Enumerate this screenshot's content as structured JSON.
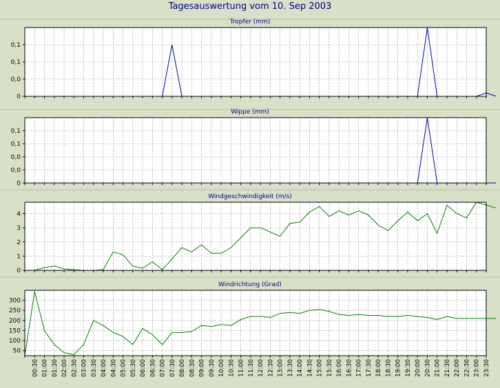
{
  "title": "Tagesauswertung vom 10. Sep 2003",
  "colors": {
    "background": "#d8e0c8",
    "plot_background": "#ffffff",
    "title_text": "#00008b",
    "panel_title_text": "#00008b",
    "axis_text": "#000000",
    "grid": "#8c8c8c",
    "blue_series": "#0000c8",
    "green_series": "#008000"
  },
  "time_labels": [
    "00:30",
    "01:00",
    "01:30",
    "02:00",
    "02:30",
    "03:00",
    "03:30",
    "04:00",
    "04:30",
    "05:00",
    "05:30",
    "06:00",
    "06:30",
    "07:00",
    "07:30",
    "08:00",
    "08:30",
    "09:00",
    "09:30",
    "10:00",
    "10:30",
    "11:00",
    "11:30",
    "12:00",
    "12:30",
    "13:00",
    "13:30",
    "14:00",
    "14:30",
    "15:00",
    "15:30",
    "16:00",
    "16:30",
    "17:00",
    "17:30",
    "18:00",
    "18:30",
    "19:00",
    "19:30",
    "20:00",
    "20:30",
    "21:00",
    "21:30",
    "22:00",
    "22:30",
    "23:00",
    "23:30"
  ],
  "chart_data": [
    {
      "type": "line",
      "title": "Tropfer (mm)",
      "y_tick_labels": [
        "0,1",
        "0,1",
        "0,0",
        "0"
      ],
      "ylim": [
        0,
        0.2
      ],
      "x_range": [
        0,
        47
      ],
      "grid": true,
      "color": "blue",
      "x": [
        0,
        14,
        15,
        16,
        40,
        41,
        42,
        46,
        47,
        48
      ],
      "y": [
        0,
        0,
        0.15,
        0,
        0,
        0.2,
        0,
        0,
        0.01,
        0
      ]
    },
    {
      "type": "line",
      "title": "Wippe (mm)",
      "y_tick_labels": [
        "0,1",
        "0,1",
        "0,0",
        "0,0",
        "0"
      ],
      "ylim": [
        0,
        0.2
      ],
      "x_range": [
        0,
        47
      ],
      "grid": true,
      "color": "blue",
      "x": [
        0,
        40,
        41,
        42,
        48
      ],
      "y": [
        0,
        0,
        0.2,
        0,
        0
      ]
    },
    {
      "type": "line",
      "title": "Windgeschwindigkeit (m/s)",
      "y_tick_labels": [
        "4",
        "3",
        "2",
        "1",
        "0"
      ],
      "ylim": [
        0,
        4.8
      ],
      "x_range": [
        0,
        47
      ],
      "grid": true,
      "color": "green",
      "x": [
        0,
        1,
        2,
        3,
        4,
        5,
        6,
        7,
        8,
        9,
        10,
        11,
        12,
        13,
        14,
        15,
        16,
        17,
        18,
        19,
        20,
        21,
        22,
        23,
        24,
        25,
        26,
        27,
        28,
        29,
        30,
        31,
        32,
        33,
        34,
        35,
        36,
        37,
        38,
        39,
        40,
        41,
        42,
        43,
        44,
        45,
        46,
        47,
        48
      ],
      "y": [
        0,
        0,
        0.2,
        0.3,
        0.1,
        0.05,
        0,
        0,
        0.05,
        1.3,
        1.1,
        0.3,
        0.15,
        0.6,
        0.05,
        0.8,
        1.6,
        1.3,
        1.8,
        1.2,
        1.2,
        1.6,
        2.3,
        3.0,
        3.0,
        2.7,
        2.4,
        3.3,
        3.4,
        4.1,
        4.5,
        3.8,
        4.2,
        3.9,
        4.2,
        3.9,
        3.2,
        2.8,
        3.5,
        4.1,
        3.5,
        4.0,
        2.6,
        4.6,
        4.0,
        3.7,
        4.8,
        4.6,
        4.4
      ]
    },
    {
      "type": "line",
      "title": "Windrichtung (Grad)",
      "y_tick_labels": [
        "300",
        "250",
        "200",
        "150",
        "100",
        "50"
      ],
      "ylim": [
        25,
        350
      ],
      "x_range": [
        0,
        47
      ],
      "grid": true,
      "color": "green",
      "x": [
        0,
        1,
        2,
        3,
        4,
        5,
        6,
        7,
        8,
        9,
        10,
        11,
        12,
        13,
        14,
        15,
        16,
        17,
        18,
        19,
        20,
        21,
        22,
        23,
        24,
        25,
        26,
        27,
        28,
        29,
        30,
        31,
        32,
        33,
        34,
        35,
        36,
        37,
        38,
        39,
        40,
        41,
        42,
        43,
        44,
        45,
        46,
        47,
        48
      ],
      "y": [
        25,
        345,
        150,
        80,
        40,
        30,
        80,
        200,
        175,
        140,
        120,
        80,
        160,
        130,
        80,
        140,
        140,
        145,
        175,
        170,
        180,
        175,
        205,
        220,
        220,
        215,
        235,
        240,
        235,
        250,
        255,
        245,
        230,
        225,
        230,
        225,
        225,
        220,
        220,
        225,
        220,
        215,
        205,
        220,
        210,
        210,
        210,
        210,
        210
      ]
    }
  ]
}
